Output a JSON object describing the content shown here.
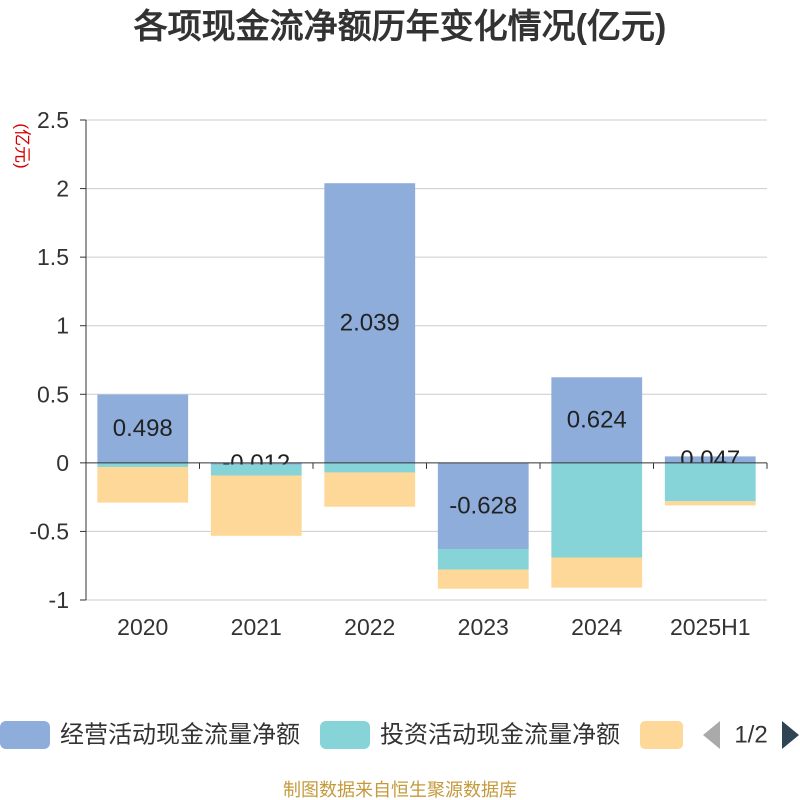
{
  "chart_data": {
    "type": "bar",
    "stacked": true,
    "title": "各项现金流净额历年变化情况(亿元)",
    "ylabel": "(亿元)",
    "ylim": [
      -1,
      2.5
    ],
    "yticks": [
      "-1",
      "-0.5",
      "0",
      "0.5",
      "1",
      "1.5",
      "2",
      "2.5"
    ],
    "grid": true,
    "legend_position": "bottom",
    "categories": [
      "2020",
      "2021",
      "2022",
      "2023",
      "2024",
      "2025H1"
    ],
    "series": [
      {
        "name": "经营活动现金流量净额",
        "color": "#8eaddb",
        "data_labels": true,
        "values": [
          0.498,
          -0.012,
          2.039,
          -0.628,
          0.624,
          0.047
        ]
      },
      {
        "name": "投资活动现金流量净额",
        "color": "#86d4d8",
        "data_labels": false,
        "values": [
          -0.03,
          -0.08,
          -0.07,
          -0.15,
          -0.69,
          -0.28
        ]
      },
      {
        "color": "#fdd898",
        "data_labels": false,
        "values": [
          -0.26,
          -0.44,
          -0.25,
          -0.14,
          -0.22,
          -0.03
        ]
      }
    ]
  },
  "legend": {
    "page": "1/2",
    "prev_icon": "triangle-left-icon",
    "next_icon": "triangle-right-icon",
    "prev_color": "#aaaaaa",
    "next_color": "#2f4554"
  },
  "footer": {
    "source_text": "制图数据来自恒生聚源数据库",
    "color": "#c49a3c"
  }
}
